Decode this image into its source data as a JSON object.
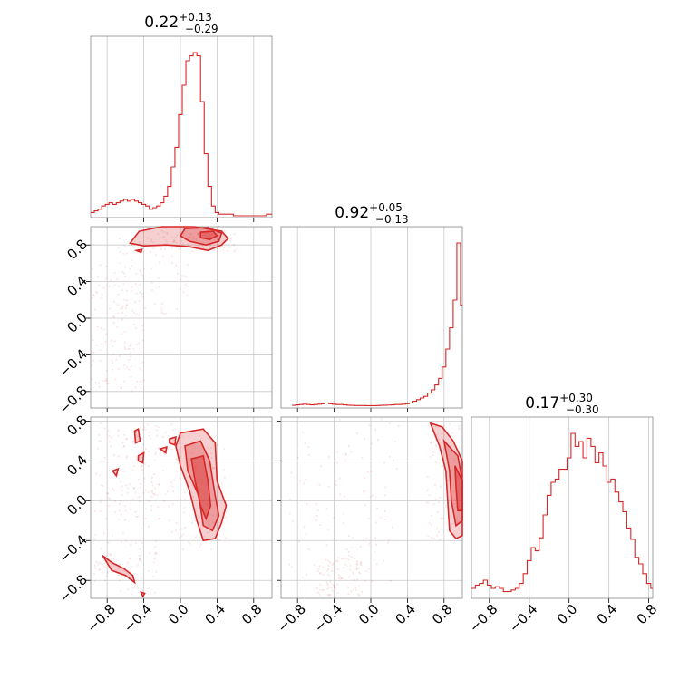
{
  "chart_data": {
    "type": "corner",
    "color": "#d62728",
    "parameters": [
      {
        "median": "0.22",
        "plus": "+0.13",
        "minus": "−0.29",
        "range": [
          -0.98,
          1.0
        ]
      },
      {
        "median": "0.92",
        "plus": "+0.05",
        "minus": "−0.13",
        "range": [
          -0.98,
          1.0
        ]
      },
      {
        "median": "0.17",
        "plus": "+0.30",
        "minus": "−0.30",
        "range": [
          -0.98,
          0.84
        ]
      }
    ],
    "ticks": {
      "p1": [
        -0.8,
        -0.4,
        0.0,
        0.4,
        0.8
      ],
      "p2": [
        -0.8,
        -0.4,
        0.0,
        0.4,
        0.8
      ],
      "p3": [
        -0.8,
        -0.4,
        0.0,
        0.4,
        0.8
      ]
    },
    "tick_labels": [
      "−0.8",
      "−0.4",
      "0.0",
      "0.4",
      "0.8"
    ],
    "histograms": [
      {
        "bins": [
          -0.98,
          -0.94,
          -0.9,
          -0.86,
          -0.82,
          -0.78,
          -0.74,
          -0.7,
          -0.66,
          -0.62,
          -0.58,
          -0.54,
          -0.5,
          -0.46,
          -0.42,
          -0.38,
          -0.34,
          -0.3,
          -0.26,
          -0.22,
          -0.18,
          -0.14,
          -0.1,
          -0.06,
          -0.02,
          0.02,
          0.06,
          0.1,
          0.14,
          0.18,
          0.22,
          0.26,
          0.3,
          0.34,
          0.38,
          0.42,
          0.46,
          0.5,
          0.54,
          0.58,
          0.62,
          0.66,
          0.7,
          0.74,
          0.78,
          0.82,
          0.86,
          0.9,
          0.94,
          0.98,
          1.0
        ],
        "counts": [
          0.02,
          0.03,
          0.04,
          0.06,
          0.07,
          0.08,
          0.07,
          0.08,
          0.09,
          0.1,
          0.09,
          0.1,
          0.09,
          0.08,
          0.07,
          0.06,
          0.04,
          0.05,
          0.06,
          0.08,
          0.12,
          0.18,
          0.3,
          0.42,
          0.62,
          0.8,
          0.95,
          0.98,
          1.0,
          0.98,
          0.7,
          0.38,
          0.18,
          0.06,
          0.02,
          0.01,
          0.01,
          0.01,
          0.01,
          0.0,
          0.0,
          0.0,
          0.0,
          0.0,
          0.0,
          0.0,
          0.0,
          0.0,
          0.01,
          0.01
        ]
      },
      {
        "bins": [
          -0.86,
          -0.82,
          -0.78,
          -0.74,
          -0.7,
          -0.66,
          -0.62,
          -0.58,
          -0.54,
          -0.5,
          -0.46,
          -0.42,
          -0.38,
          -0.34,
          -0.3,
          -0.26,
          -0.22,
          -0.18,
          -0.14,
          -0.1,
          -0.06,
          -0.02,
          0.02,
          0.06,
          0.1,
          0.14,
          0.18,
          0.22,
          0.26,
          0.3,
          0.34,
          0.38,
          0.42,
          0.46,
          0.5,
          0.54,
          0.58,
          0.62,
          0.66,
          0.7,
          0.74,
          0.78,
          0.82,
          0.86,
          0.9,
          0.94,
          0.98,
          1.0
        ],
        "counts": [
          0.005,
          0.008,
          0.01,
          0.012,
          0.01,
          0.008,
          0.01,
          0.012,
          0.015,
          0.02,
          0.015,
          0.012,
          0.01,
          0.01,
          0.008,
          0.006,
          0.005,
          0.004,
          0.004,
          0.004,
          0.003,
          0.003,
          0.003,
          0.004,
          0.005,
          0.006,
          0.007,
          0.008,
          0.01,
          0.01,
          0.012,
          0.015,
          0.02,
          0.03,
          0.04,
          0.05,
          0.06,
          0.08,
          0.1,
          0.13,
          0.17,
          0.24,
          0.35,
          0.48,
          0.65,
          1.0,
          0.62
        ]
      },
      {
        "bins": [
          -0.98,
          -0.94,
          -0.9,
          -0.86,
          -0.82,
          -0.78,
          -0.74,
          -0.7,
          -0.66,
          -0.62,
          -0.58,
          -0.54,
          -0.5,
          -0.46,
          -0.42,
          -0.38,
          -0.34,
          -0.3,
          -0.26,
          -0.22,
          -0.18,
          -0.14,
          -0.1,
          -0.06,
          -0.02,
          0.02,
          0.06,
          0.1,
          0.14,
          0.18,
          0.22,
          0.26,
          0.3,
          0.34,
          0.38,
          0.42,
          0.46,
          0.5,
          0.54,
          0.58,
          0.62,
          0.66,
          0.7,
          0.74,
          0.78,
          0.82,
          0.84
        ],
        "counts": [
          0.05,
          0.07,
          0.08,
          0.1,
          0.07,
          0.05,
          0.06,
          0.05,
          0.03,
          0.03,
          0.04,
          0.05,
          0.08,
          0.14,
          0.22,
          0.3,
          0.28,
          0.36,
          0.5,
          0.62,
          0.7,
          0.72,
          0.78,
          0.78,
          0.85,
          1.0,
          0.92,
          0.95,
          0.85,
          0.97,
          0.92,
          0.82,
          0.88,
          0.8,
          0.7,
          0.72,
          0.64,
          0.58,
          0.52,
          0.42,
          0.35,
          0.24,
          0.2,
          0.14,
          0.08,
          0.05
        ]
      }
    ],
    "contours": {
      "p2_vs_p1": [
        {
          "level": "outer",
          "points": [
            [
              -0.55,
              0.82
            ],
            [
              -0.45,
              0.95
            ],
            [
              -0.2,
              1.0
            ],
            [
              0.15,
              1.0
            ],
            [
              0.45,
              0.95
            ],
            [
              0.52,
              0.87
            ],
            [
              0.45,
              0.8
            ],
            [
              0.3,
              0.74
            ],
            [
              0.1,
              0.78
            ],
            [
              -0.15,
              0.8
            ],
            [
              -0.4,
              0.79
            ],
            [
              -0.55,
              0.82
            ]
          ]
        },
        {
          "level": "mid",
          "points": [
            [
              0.05,
              0.98
            ],
            [
              0.3,
              0.99
            ],
            [
              0.45,
              0.93
            ],
            [
              0.42,
              0.84
            ],
            [
              0.28,
              0.8
            ],
            [
              0.1,
              0.84
            ],
            [
              0.0,
              0.9
            ],
            [
              0.05,
              0.98
            ]
          ]
        },
        {
          "level": "inner",
          "points": [
            [
              0.22,
              0.94
            ],
            [
              0.36,
              0.95
            ],
            [
              0.4,
              0.9
            ],
            [
              0.32,
              0.86
            ],
            [
              0.22,
              0.88
            ],
            [
              0.22,
              0.94
            ]
          ]
        },
        {
          "level": "blob",
          "points": [
            [
              -0.48,
              0.74
            ],
            [
              -0.42,
              0.75
            ],
            [
              -0.43,
              0.72
            ],
            [
              -0.48,
              0.74
            ]
          ]
        }
      ],
      "p3_vs_p1": [
        {
          "level": "outer",
          "points": [
            [
              0.0,
              0.68
            ],
            [
              0.25,
              0.72
            ],
            [
              0.38,
              0.58
            ],
            [
              0.4,
              0.2
            ],
            [
              0.5,
              -0.05
            ],
            [
              0.45,
              -0.22
            ],
            [
              0.38,
              -0.38
            ],
            [
              0.25,
              -0.4
            ],
            [
              0.18,
              -0.2
            ],
            [
              0.1,
              0.1
            ],
            [
              0.0,
              0.35
            ],
            [
              -0.05,
              0.55
            ],
            [
              0.0,
              0.68
            ]
          ]
        },
        {
          "level": "mid",
          "points": [
            [
              0.05,
              0.55
            ],
            [
              0.22,
              0.6
            ],
            [
              0.32,
              0.4
            ],
            [
              0.38,
              0.05
            ],
            [
              0.42,
              -0.15
            ],
            [
              0.35,
              -0.3
            ],
            [
              0.25,
              -0.25
            ],
            [
              0.2,
              0.05
            ],
            [
              0.08,
              0.3
            ],
            [
              0.05,
              0.55
            ]
          ]
        },
        {
          "level": "inner",
          "points": [
            [
              0.12,
              0.42
            ],
            [
              0.25,
              0.45
            ],
            [
              0.3,
              0.2
            ],
            [
              0.33,
              -0.05
            ],
            [
              0.28,
              -0.18
            ],
            [
              0.22,
              -0.05
            ],
            [
              0.16,
              0.2
            ],
            [
              0.12,
              0.42
            ]
          ]
        },
        {
          "level": "island",
          "points": [
            [
              -0.5,
              0.7
            ],
            [
              -0.46,
              0.72
            ],
            [
              -0.44,
              0.6
            ],
            [
              -0.49,
              0.58
            ],
            [
              -0.5,
              0.7
            ]
          ]
        },
        {
          "level": "island",
          "points": [
            [
              -0.46,
              0.45
            ],
            [
              -0.4,
              0.48
            ],
            [
              -0.41,
              0.38
            ],
            [
              -0.46,
              0.4
            ],
            [
              -0.46,
              0.45
            ]
          ]
        },
        {
          "level": "island",
          "points": [
            [
              -0.74,
              0.3
            ],
            [
              -0.68,
              0.32
            ],
            [
              -0.7,
              0.25
            ],
            [
              -0.74,
              0.3
            ]
          ]
        },
        {
          "level": "island",
          "points": [
            [
              -0.12,
              0.62
            ],
            [
              -0.05,
              0.64
            ],
            [
              -0.06,
              0.56
            ],
            [
              -0.12,
              0.58
            ],
            [
              -0.12,
              0.62
            ]
          ]
        },
        {
          "level": "island",
          "points": [
            [
              -0.22,
              0.52
            ],
            [
              -0.15,
              0.54
            ],
            [
              -0.16,
              0.48
            ],
            [
              -0.22,
              0.52
            ]
          ]
        },
        {
          "level": "tail",
          "points": [
            [
              -0.85,
              -0.55
            ],
            [
              -0.75,
              -0.7
            ],
            [
              -0.6,
              -0.75
            ],
            [
              -0.5,
              -0.82
            ],
            [
              -0.52,
              -0.75
            ],
            [
              -0.62,
              -0.68
            ],
            [
              -0.75,
              -0.62
            ],
            [
              -0.85,
              -0.55
            ]
          ]
        },
        {
          "level": "dot",
          "points": [
            [
              -0.43,
              -0.92
            ],
            [
              -0.39,
              -0.93
            ],
            [
              -0.41,
              -0.96
            ],
            [
              -0.43,
              -0.92
            ]
          ]
        }
      ],
      "p3_vs_p2": [
        {
          "level": "outer",
          "points": [
            [
              0.65,
              0.78
            ],
            [
              0.78,
              0.74
            ],
            [
              0.9,
              0.6
            ],
            [
              1.0,
              0.4
            ],
            [
              1.0,
              -0.35
            ],
            [
              0.93,
              -0.38
            ],
            [
              0.86,
              -0.3
            ],
            [
              0.84,
              0.0
            ],
            [
              0.82,
              0.3
            ],
            [
              0.75,
              0.55
            ],
            [
              0.65,
              0.78
            ]
          ]
        },
        {
          "level": "mid",
          "points": [
            [
              0.8,
              0.6
            ],
            [
              0.95,
              0.45
            ],
            [
              1.0,
              0.2
            ],
            [
              1.0,
              -0.2
            ],
            [
              0.93,
              -0.25
            ],
            [
              0.88,
              0.0
            ],
            [
              0.86,
              0.3
            ],
            [
              0.8,
              0.6
            ]
          ]
        },
        {
          "level": "inner",
          "points": [
            [
              0.92,
              0.35
            ],
            [
              1.0,
              0.2
            ],
            [
              1.0,
              -0.1
            ],
            [
              0.95,
              -0.1
            ],
            [
              0.93,
              0.15
            ],
            [
              0.92,
              0.35
            ]
          ]
        }
      ]
    }
  }
}
